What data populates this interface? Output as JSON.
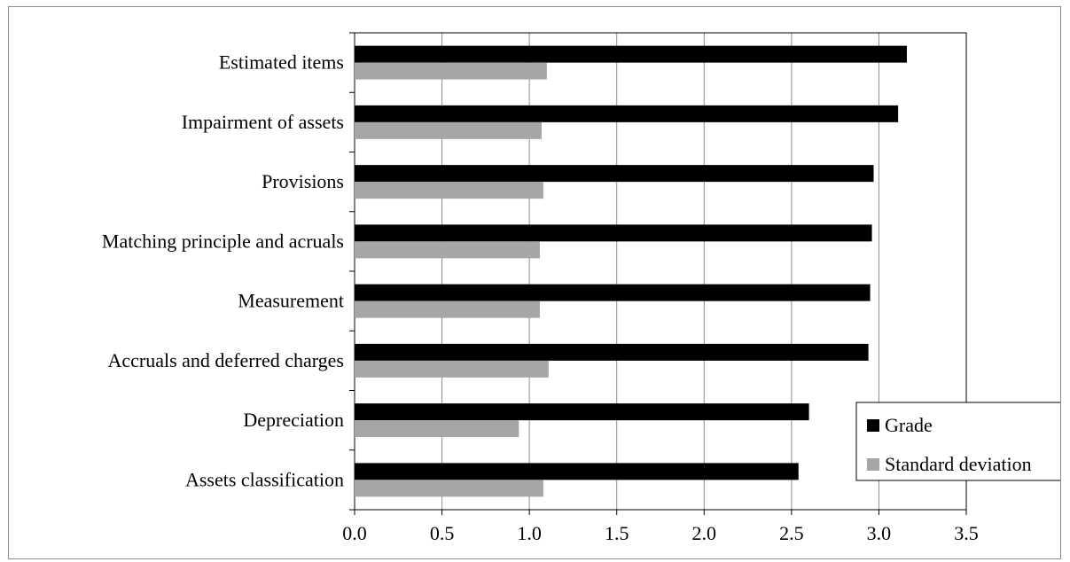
{
  "chart_data": {
    "type": "bar",
    "orientation": "horizontal",
    "categories": [
      "Estimated items",
      "Impairment of assets",
      "Provisions",
      "Matching principle and acruals",
      "Measurement",
      "Accruals and deferred charges",
      "Depreciation",
      "Assets classification"
    ],
    "series": [
      {
        "name": "Grade",
        "color": "#000000",
        "values": [
          3.16,
          3.11,
          2.97,
          2.96,
          2.95,
          2.94,
          2.6,
          2.54
        ]
      },
      {
        "name": "Standard deviation",
        "color": "#a6a6a6",
        "values": [
          1.1,
          1.07,
          1.08,
          1.06,
          1.06,
          1.11,
          0.94,
          1.08
        ]
      }
    ],
    "xlim": [
      0,
      3.5
    ],
    "xticks": [
      "0.0",
      "0.5",
      "1.0",
      "1.5",
      "2.0",
      "2.5",
      "3.0",
      "3.5"
    ],
    "grid": "vertical",
    "legend_position": "bottom-right",
    "title": "",
    "xlabel": "",
    "ylabel": ""
  }
}
